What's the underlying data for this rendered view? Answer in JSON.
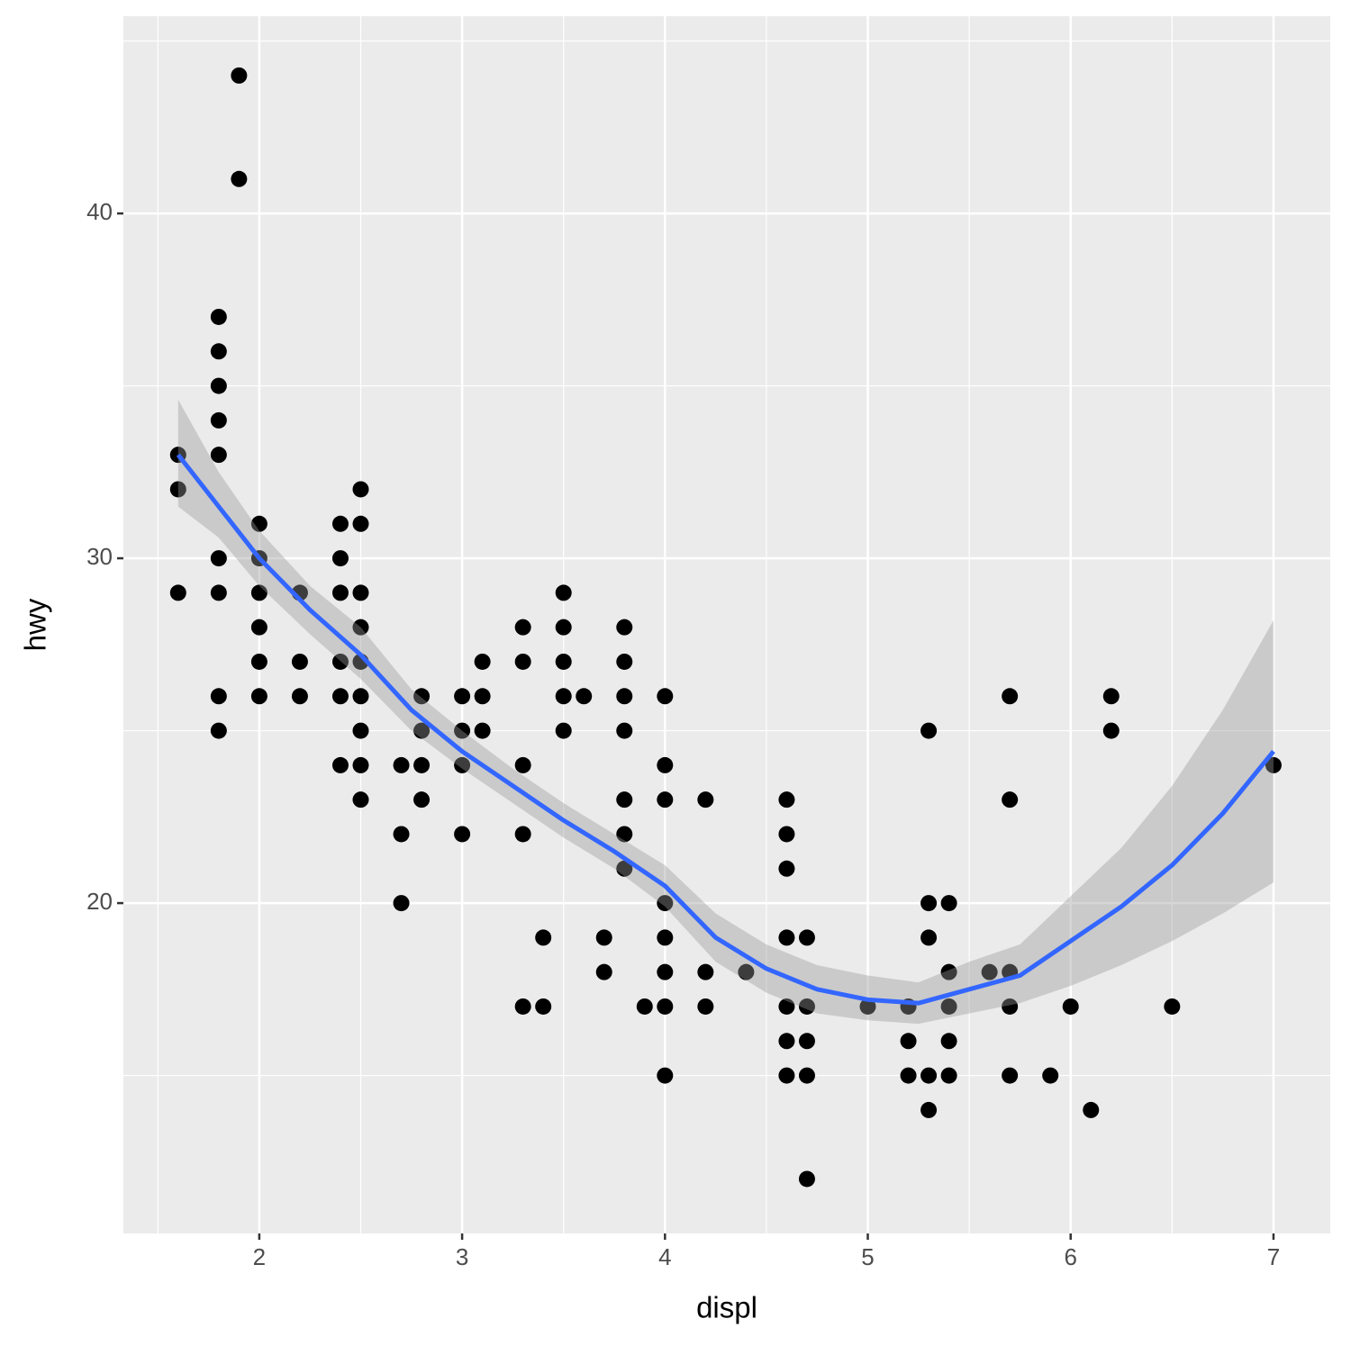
{
  "chart_data": {
    "type": "scatter",
    "x_label": "displ",
    "y_label": "hwy",
    "xlim": [
      1.33,
      7.28
    ],
    "ylim": [
      10.42,
      45.72
    ],
    "xticks": [
      2,
      3,
      4,
      5,
      6,
      7
    ],
    "yticks": [
      20,
      30,
      40
    ],
    "x_minor_grid": [
      1.5,
      2.5,
      3.5,
      4.5,
      5.5,
      6.5
    ],
    "y_minor_grid": [
      15,
      25,
      35,
      45
    ],
    "grid": true,
    "panel_color": "#ebebeb",
    "grid_color": "#ffffff",
    "points": {
      "color": "#000000",
      "x": [
        1.6,
        1.6,
        1.6,
        1.8,
        1.8,
        1.8,
        1.8,
        1.8,
        1.8,
        1.8,
        1.8,
        1.8,
        1.9,
        1.9,
        2.0,
        2.0,
        2.0,
        2.0,
        2.0,
        2.0,
        2.2,
        2.2,
        2.2,
        2.4,
        2.4,
        2.4,
        2.4,
        2.4,
        2.4,
        2.5,
        2.5,
        2.5,
        2.5,
        2.5,
        2.5,
        2.5,
        2.5,
        2.5,
        2.7,
        2.7,
        2.7,
        2.8,
        2.8,
        2.8,
        2.8,
        3.0,
        3.0,
        3.0,
        3.0,
        3.1,
        3.1,
        3.1,
        3.3,
        3.3,
        3.3,
        3.3,
        3.3,
        3.4,
        3.4,
        3.5,
        3.5,
        3.5,
        3.5,
        3.5,
        3.6,
        3.7,
        3.7,
        3.8,
        3.8,
        3.8,
        3.8,
        3.8,
        3.8,
        3.8,
        3.9,
        4.0,
        4.0,
        4.0,
        4.0,
        4.0,
        4.0,
        4.0,
        4.0,
        4.2,
        4.2,
        4.2,
        4.4,
        4.6,
        4.6,
        4.6,
        4.6,
        4.6,
        4.6,
        4.6,
        4.7,
        4.7,
        4.7,
        4.7,
        4.7,
        5.0,
        5.2,
        5.2,
        5.2,
        5.3,
        5.3,
        5.3,
        5.3,
        5.3,
        5.4,
        5.4,
        5.4,
        5.4,
        5.4,
        5.6,
        5.7,
        5.7,
        5.7,
        5.7,
        5.7,
        5.9,
        6.0,
        6.1,
        6.2,
        6.2,
        6.5,
        7.0
      ],
      "y": [
        33,
        32,
        29,
        37,
        36,
        35,
        34,
        33,
        30,
        29,
        26,
        25,
        44,
        41,
        31,
        30,
        29,
        28,
        27,
        26,
        29,
        27,
        26,
        31,
        30,
        29,
        27,
        26,
        24,
        32,
        31,
        29,
        28,
        27,
        26,
        25,
        24,
        23,
        24,
        22,
        20,
        26,
        25,
        24,
        23,
        26,
        25,
        24,
        22,
        27,
        26,
        25,
        28,
        27,
        24,
        22,
        17,
        19,
        17,
        29,
        28,
        27,
        26,
        25,
        26,
        19,
        18,
        28,
        27,
        26,
        25,
        23,
        22,
        21,
        17,
        26,
        24,
        23,
        20,
        19,
        18,
        17,
        15,
        23,
        18,
        17,
        18,
        23,
        22,
        21,
        19,
        17,
        16,
        15,
        19,
        17,
        16,
        15,
        12,
        17,
        17,
        16,
        15,
        25,
        20,
        19,
        15,
        14,
        20,
        18,
        17,
        16,
        15,
        18,
        26,
        23,
        18,
        17,
        15,
        15,
        17,
        14,
        26,
        25,
        17,
        24
      ]
    },
    "smooth": {
      "color": "#3366ff",
      "fill": "#999999",
      "x": [
        1.6,
        1.8,
        2.0,
        2.25,
        2.5,
        2.75,
        3.0,
        3.25,
        3.5,
        3.75,
        4.0,
        4.25,
        4.5,
        4.75,
        5.0,
        5.25,
        5.5,
        5.75,
        6.0,
        6.25,
        6.5,
        6.75,
        7.0
      ],
      "y": [
        33.0,
        31.5,
        30.0,
        28.5,
        27.2,
        25.6,
        24.4,
        23.4,
        22.4,
        21.5,
        20.5,
        19.0,
        18.1,
        17.5,
        17.2,
        17.1,
        17.5,
        17.9,
        18.9,
        19.9,
        21.1,
        22.6,
        24.4
      ],
      "ymin": [
        31.5,
        30.6,
        29.2,
        27.8,
        26.5,
        25.0,
        23.9,
        22.9,
        21.9,
        21.0,
        19.9,
        18.3,
        17.4,
        16.8,
        16.6,
        16.5,
        16.8,
        17.1,
        17.6,
        18.2,
        18.9,
        19.7,
        20.6
      ],
      "ymax": [
        34.6,
        32.5,
        30.8,
        29.2,
        28.0,
        26.2,
        25.0,
        23.9,
        22.9,
        22.0,
        21.1,
        19.7,
        18.8,
        18.2,
        17.9,
        17.7,
        18.3,
        18.8,
        20.2,
        21.6,
        23.4,
        25.6,
        28.2
      ]
    }
  }
}
